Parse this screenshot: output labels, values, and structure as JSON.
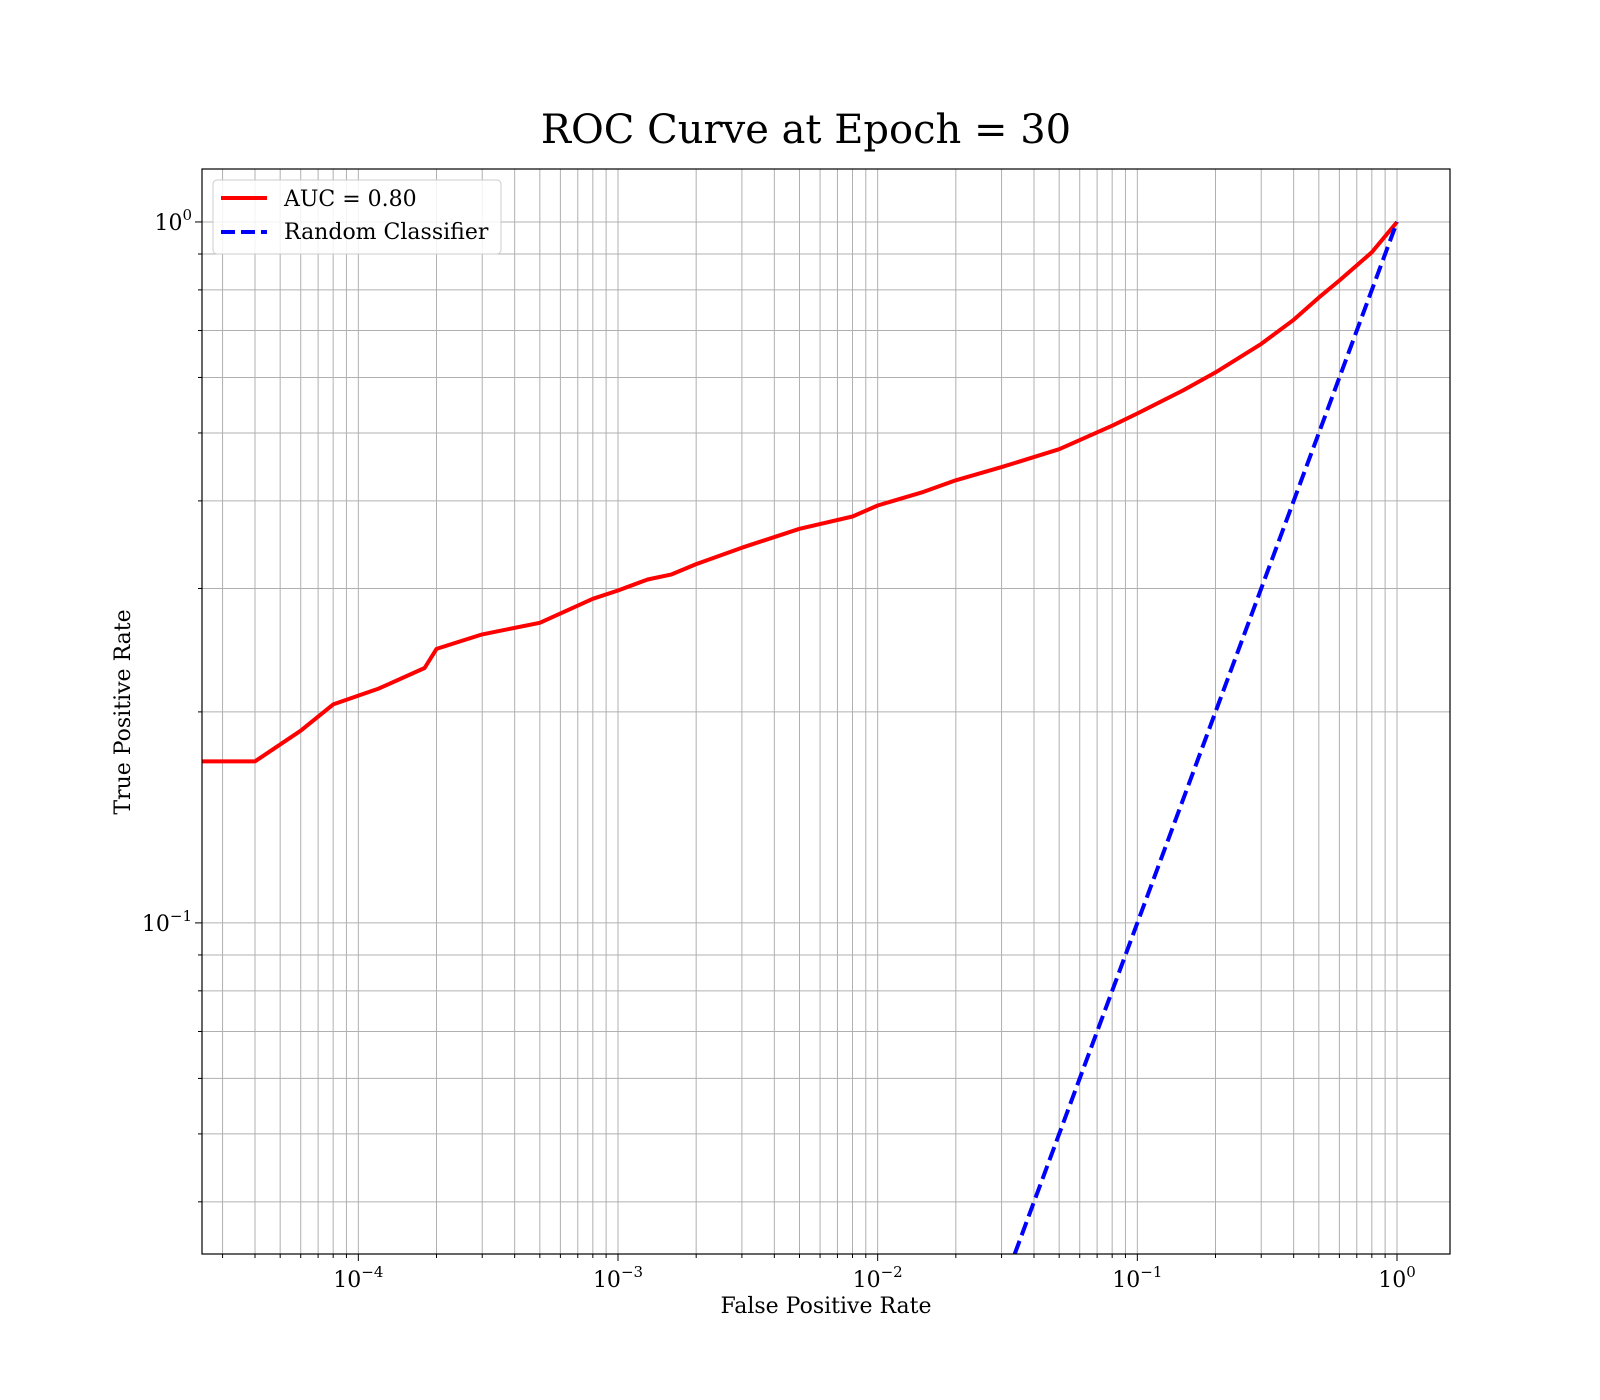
{
  "chart_data": {
    "type": "line",
    "title": "ROC Curve at Epoch = 30",
    "xlabel": "False Positive Rate",
    "ylabel": "True Positive Rate",
    "xscale": "log",
    "yscale": "log",
    "xlim": [
      2.5e-05,
      1.6
    ],
    "ylim": [
      0.0337,
      1.19
    ],
    "grid": true,
    "grid_which": "both",
    "legend_position": "upper left",
    "x_ticks": [
      {
        "value": 0.0001,
        "base": "10",
        "exp": "−4"
      },
      {
        "value": 0.001,
        "base": "10",
        "exp": "−3"
      },
      {
        "value": 0.01,
        "base": "10",
        "exp": "−2"
      },
      {
        "value": 0.1,
        "base": "10",
        "exp": "−1"
      },
      {
        "value": 1,
        "base": "10",
        "exp": "0"
      }
    ],
    "y_ticks": [
      {
        "value": 0.1,
        "base": "10",
        "exp": "−1"
      },
      {
        "value": 1,
        "base": "10",
        "exp": "0"
      }
    ],
    "series": [
      {
        "name": "AUC = 0.80",
        "color": "#ff0000",
        "style": "solid",
        "x": [
          2.5e-05,
          4e-05,
          6e-05,
          8e-05,
          0.00012,
          0.00018,
          0.0002,
          0.0003,
          0.0005,
          0.0008,
          0.001,
          0.0013,
          0.0016,
          0.002,
          0.003,
          0.005,
          0.008,
          0.01,
          0.015,
          0.02,
          0.03,
          0.05,
          0.08,
          0.1,
          0.15,
          0.2,
          0.3,
          0.4,
          0.5,
          0.6,
          0.8,
          1.0
        ],
        "y": [
          0.17,
          0.17,
          0.188,
          0.205,
          0.216,
          0.231,
          0.246,
          0.258,
          0.268,
          0.29,
          0.298,
          0.309,
          0.314,
          0.325,
          0.343,
          0.365,
          0.38,
          0.394,
          0.412,
          0.428,
          0.447,
          0.474,
          0.512,
          0.533,
          0.575,
          0.61,
          0.67,
          0.725,
          0.78,
          0.825,
          0.905,
          1.0
        ]
      },
      {
        "name": "Random Classifier",
        "color": "#0000ff",
        "style": "dashed",
        "x": [
          0.0337,
          1.0
        ],
        "y": [
          0.0337,
          1.0
        ]
      }
    ]
  }
}
